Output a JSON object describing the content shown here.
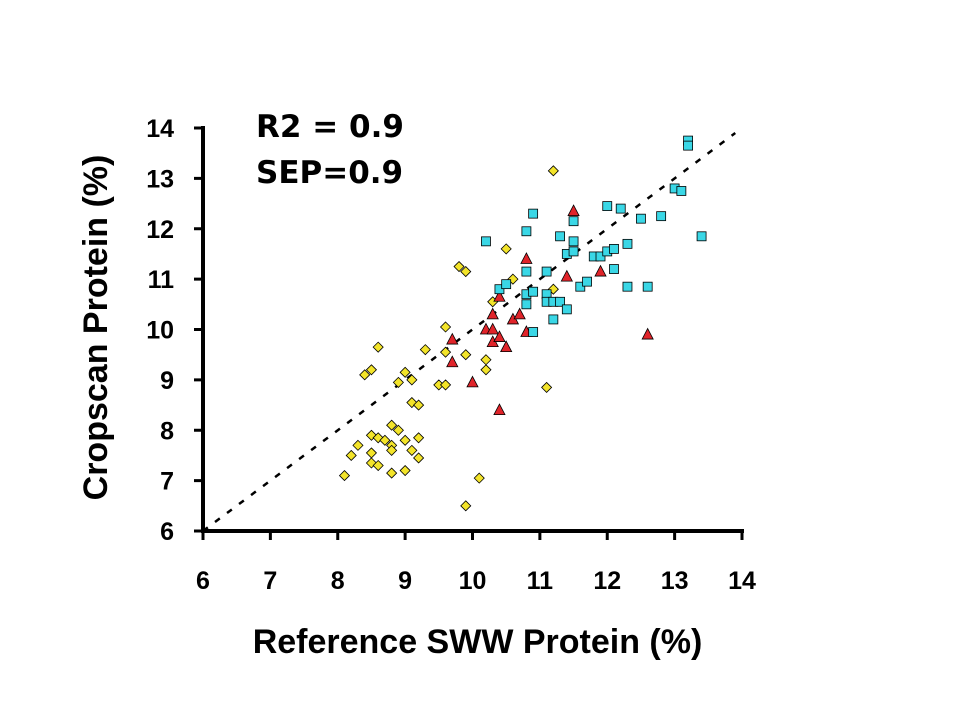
{
  "chart_data": {
    "type": "scatter",
    "title": "",
    "xlabel": "Reference SWW Protein (%)",
    "ylabel": "Cropscan Protein (%)",
    "xlim": [
      6,
      14
    ],
    "ylim": [
      6,
      14
    ],
    "xticks": [
      6,
      7,
      8,
      9,
      10,
      11,
      12,
      13,
      14
    ],
    "yticks": [
      6,
      7,
      8,
      9,
      10,
      11,
      12,
      13,
      14
    ],
    "annotations": [
      "R2 = 0.9",
      "SEP=0.9"
    ],
    "reference_line": {
      "style": "dashed",
      "x": [
        6,
        13.9
      ],
      "y": [
        6,
        13.9
      ]
    },
    "grid": false,
    "legend": "none",
    "series": [
      {
        "marker": "diamond",
        "color": "#f3e42a",
        "points": [
          [
            8.1,
            7.1
          ],
          [
            8.2,
            7.5
          ],
          [
            8.3,
            7.7
          ],
          [
            8.4,
            9.1
          ],
          [
            8.5,
            9.2
          ],
          [
            8.5,
            7.9
          ],
          [
            8.5,
            7.55
          ],
          [
            8.5,
            7.35
          ],
          [
            8.6,
            7.3
          ],
          [
            8.6,
            9.65
          ],
          [
            8.6,
            7.85
          ],
          [
            8.7,
            7.8
          ],
          [
            8.8,
            7.7
          ],
          [
            8.8,
            7.6
          ],
          [
            8.8,
            8.1
          ],
          [
            8.8,
            7.15
          ],
          [
            8.9,
            8.0
          ],
          [
            8.9,
            8.95
          ],
          [
            9.0,
            9.15
          ],
          [
            9.0,
            7.8
          ],
          [
            9.0,
            7.2
          ],
          [
            9.1,
            7.6
          ],
          [
            9.1,
            9.0
          ],
          [
            9.1,
            8.55
          ],
          [
            9.2,
            7.45
          ],
          [
            9.2,
            7.85
          ],
          [
            9.2,
            8.5
          ],
          [
            9.3,
            9.6
          ],
          [
            9.5,
            8.9
          ],
          [
            9.6,
            8.9
          ],
          [
            9.6,
            9.55
          ],
          [
            9.6,
            10.05
          ],
          [
            9.8,
            11.25
          ],
          [
            9.9,
            11.15
          ],
          [
            9.9,
            9.5
          ],
          [
            9.9,
            6.5
          ],
          [
            10.1,
            7.05
          ],
          [
            10.2,
            9.4
          ],
          [
            10.2,
            9.2
          ],
          [
            10.3,
            10.55
          ],
          [
            10.5,
            11.6
          ],
          [
            10.6,
            11.0
          ],
          [
            11.1,
            8.85
          ],
          [
            11.2,
            10.8
          ],
          [
            11.2,
            13.15
          ]
        ]
      },
      {
        "marker": "triangle",
        "color": "#e0242a",
        "points": [
          [
            9.7,
            9.8
          ],
          [
            9.7,
            9.35
          ],
          [
            10.0,
            8.95
          ],
          [
            10.2,
            10.0
          ],
          [
            10.3,
            10.3
          ],
          [
            10.3,
            10.0
          ],
          [
            10.3,
            9.75
          ],
          [
            10.4,
            10.65
          ],
          [
            10.4,
            9.85
          ],
          [
            10.4,
            8.4
          ],
          [
            10.5,
            9.65
          ],
          [
            10.6,
            10.2
          ],
          [
            10.7,
            10.3
          ],
          [
            10.8,
            11.4
          ],
          [
            10.8,
            9.95
          ],
          [
            11.4,
            11.05
          ],
          [
            11.5,
            12.35
          ],
          [
            11.9,
            11.15
          ],
          [
            12.6,
            9.9
          ]
        ]
      },
      {
        "marker": "square",
        "color": "#3ad7e6",
        "points": [
          [
            10.2,
            11.75
          ],
          [
            10.4,
            10.8
          ],
          [
            10.5,
            10.9
          ],
          [
            10.8,
            11.95
          ],
          [
            10.8,
            11.15
          ],
          [
            10.8,
            10.7
          ],
          [
            10.8,
            10.5
          ],
          [
            10.9,
            12.3
          ],
          [
            10.9,
            10.75
          ],
          [
            10.9,
            9.95
          ],
          [
            11.1,
            11.15
          ],
          [
            11.1,
            10.7
          ],
          [
            11.1,
            10.55
          ],
          [
            11.2,
            10.55
          ],
          [
            11.2,
            10.2
          ],
          [
            11.3,
            11.85
          ],
          [
            11.3,
            10.55
          ],
          [
            11.4,
            11.5
          ],
          [
            11.4,
            10.4
          ],
          [
            11.5,
            12.15
          ],
          [
            11.5,
            11.75
          ],
          [
            11.5,
            11.55
          ],
          [
            11.6,
            10.85
          ],
          [
            11.7,
            10.95
          ],
          [
            11.8,
            11.45
          ],
          [
            11.9,
            11.45
          ],
          [
            12.0,
            12.45
          ],
          [
            12.0,
            11.55
          ],
          [
            12.1,
            11.6
          ],
          [
            12.1,
            11.2
          ],
          [
            12.2,
            12.4
          ],
          [
            12.3,
            11.7
          ],
          [
            12.3,
            10.85
          ],
          [
            12.5,
            12.2
          ],
          [
            12.6,
            10.85
          ],
          [
            12.8,
            12.25
          ],
          [
            13.0,
            12.8
          ],
          [
            13.1,
            12.75
          ],
          [
            13.2,
            13.75
          ],
          [
            13.2,
            13.65
          ],
          [
            13.4,
            11.85
          ]
        ]
      }
    ]
  }
}
